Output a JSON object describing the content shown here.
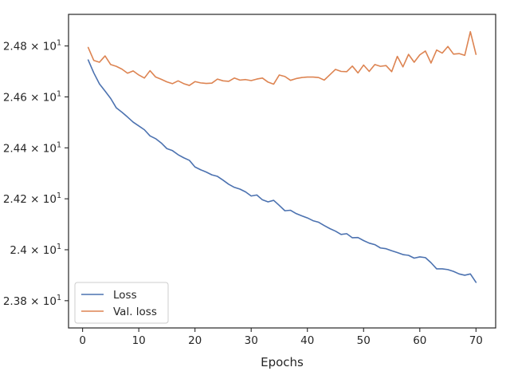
{
  "chart_data": {
    "type": "line",
    "xlabel": "Epochs",
    "ylabel": "",
    "xlim": [
      -2.5,
      73.5
    ],
    "ylim": [
      23.693,
      24.924
    ],
    "xticks": [
      0,
      10,
      20,
      30,
      40,
      50,
      60,
      70
    ],
    "xtick_labels": [
      "0",
      "10",
      "20",
      "30",
      "40",
      "50",
      "60",
      "70"
    ],
    "yticks": [
      23.8,
      24.0,
      24.2,
      24.4,
      24.6,
      24.8
    ],
    "ytick_labels": [
      {
        "mantissa": "2.38",
        "times": "×",
        "base": "10",
        "exp": "1"
      },
      {
        "mantissa": "2.4",
        "times": "×",
        "base": "10",
        "exp": "1"
      },
      {
        "mantissa": "2.42",
        "times": "×",
        "base": "10",
        "exp": "1"
      },
      {
        "mantissa": "2.44",
        "times": "×",
        "base": "10",
        "exp": "1"
      },
      {
        "mantissa": "2.46",
        "times": "×",
        "base": "10",
        "exp": "1"
      },
      {
        "mantissa": "2.48",
        "times": "×",
        "base": "10",
        "exp": "1"
      }
    ],
    "grid": false,
    "legend_position": "lower-left",
    "x": [
      1,
      2,
      3,
      4,
      5,
      6,
      7,
      8,
      9,
      10,
      11,
      12,
      13,
      14,
      15,
      16,
      17,
      18,
      19,
      20,
      21,
      22,
      23,
      24,
      25,
      26,
      27,
      28,
      29,
      30,
      31,
      32,
      33,
      34,
      35,
      36,
      37,
      38,
      39,
      40,
      41,
      42,
      43,
      44,
      45,
      46,
      47,
      48,
      49,
      50,
      51,
      52,
      53,
      54,
      55,
      56,
      57,
      58,
      59,
      60,
      61,
      62,
      63,
      64,
      65,
      66,
      67,
      68,
      69,
      70
    ],
    "series": [
      {
        "name": "Loss",
        "color": "#4c72b0",
        "values": [
          24.745,
          24.694,
          24.651,
          24.623,
          24.594,
          24.557,
          24.54,
          24.521,
          24.501,
          24.486,
          24.471,
          24.447,
          24.436,
          24.419,
          24.397,
          24.389,
          24.373,
          24.361,
          24.351,
          24.325,
          24.314,
          24.305,
          24.294,
          24.288,
          24.273,
          24.257,
          24.245,
          24.238,
          24.227,
          24.211,
          24.215,
          24.196,
          24.188,
          24.194,
          24.174,
          24.153,
          24.155,
          24.142,
          24.133,
          24.125,
          24.114,
          24.108,
          24.095,
          24.083,
          24.073,
          24.06,
          24.063,
          24.047,
          24.048,
          24.036,
          24.026,
          24.02,
          24.007,
          24.004,
          23.996,
          23.989,
          23.981,
          23.978,
          23.967,
          23.972,
          23.969,
          23.949,
          23.925,
          23.925,
          23.922,
          23.915,
          23.905,
          23.9,
          23.905,
          23.872
        ]
      },
      {
        "name": "Val. loss",
        "color": "#dd8452",
        "values": [
          24.794,
          24.743,
          24.736,
          24.761,
          24.727,
          24.72,
          24.709,
          24.693,
          24.702,
          24.686,
          24.674,
          24.703,
          24.678,
          24.669,
          24.659,
          24.652,
          24.663,
          24.652,
          24.645,
          24.66,
          24.655,
          24.653,
          24.654,
          24.67,
          24.663,
          24.661,
          24.674,
          24.666,
          24.668,
          24.664,
          24.67,
          24.674,
          24.658,
          24.65,
          24.686,
          24.68,
          24.665,
          24.672,
          24.676,
          24.678,
          24.678,
          24.676,
          24.666,
          24.687,
          24.708,
          24.7,
          24.699,
          24.721,
          24.694,
          24.725,
          24.7,
          24.727,
          24.72,
          24.723,
          24.699,
          24.759,
          24.718,
          24.767,
          24.736,
          24.765,
          24.78,
          24.733,
          24.784,
          24.772,
          24.798,
          24.768,
          24.77,
          24.763,
          24.856,
          24.767
        ]
      }
    ]
  }
}
